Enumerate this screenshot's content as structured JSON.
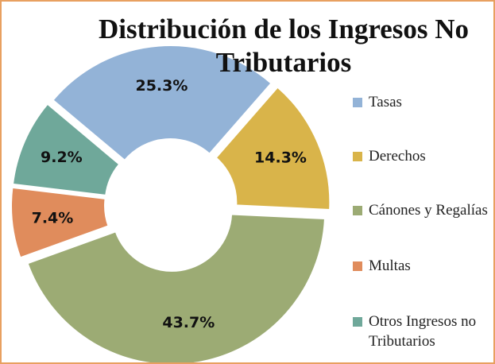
{
  "chart_data": {
    "type": "donut",
    "title": "Distribución de los Ingresos No Tributarios",
    "categories": [
      "Tasas",
      "Derechos",
      "Cánones y Regalías",
      "Multas",
      "Otros Ingresos no Tributarios"
    ],
    "values": [
      25.3,
      14.3,
      43.7,
      7.4,
      9.2
    ],
    "value_labels": [
      "25.3%",
      "14.3%",
      "43.7%",
      "7.4%",
      "9.2%"
    ],
    "colors": [
      "#93b3d7",
      "#d9b44a",
      "#9cab74",
      "#e08c5c",
      "#6fa89a"
    ],
    "legend": "right"
  }
}
